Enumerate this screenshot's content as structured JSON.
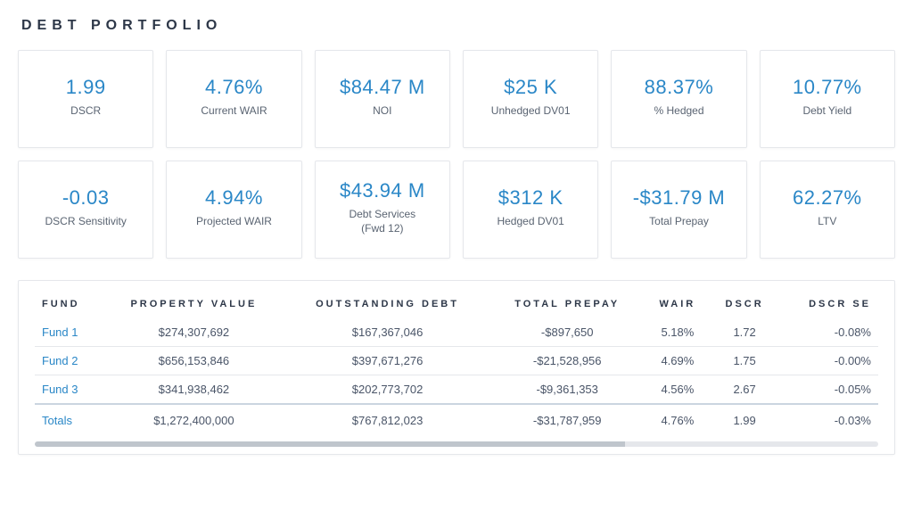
{
  "title": "DEBT PORTFOLIO",
  "colors": {
    "accent": "#2a87c7",
    "text": "#4a5568",
    "card_border": "#e5e7eb",
    "background": "#ffffff"
  },
  "kpis": [
    {
      "value": "1.99",
      "label": "DSCR"
    },
    {
      "value": "4.76%",
      "label": "Current WAIR"
    },
    {
      "value": "$84.47 M",
      "label": "NOI"
    },
    {
      "value": "$25 K",
      "label": "Unhedged DV01"
    },
    {
      "value": "88.37%",
      "label": "% Hedged"
    },
    {
      "value": "10.77%",
      "label": "Debt Yield"
    },
    {
      "value": "-0.03",
      "label": "DSCR Sensitivity"
    },
    {
      "value": "4.94%",
      "label": "Projected WAIR"
    },
    {
      "value": "$43.94 M",
      "label": "Debt Services\n(Fwd 12)"
    },
    {
      "value": "$312 K",
      "label": "Hedged DV01"
    },
    {
      "value": "-$31.79 M",
      "label": "Total Prepay"
    },
    {
      "value": "62.27%",
      "label": "LTV"
    }
  ],
  "table": {
    "columns": [
      "FUND",
      "PROPERTY VALUE",
      "OUTSTANDING DEBT",
      "TOTAL PREPAY",
      "WAIR",
      "DSCR",
      "DSCR SE"
    ],
    "rows": [
      {
        "fund": "Fund 1",
        "property_value": "$274,307,692",
        "outstanding_debt": "$167,367,046",
        "total_prepay": "-$897,650",
        "wair": "5.18%",
        "dscr": "1.72",
        "dscr_se": "-0.08%"
      },
      {
        "fund": "Fund 2",
        "property_value": "$656,153,846",
        "outstanding_debt": "$397,671,276",
        "total_prepay": "-$21,528,956",
        "wair": "4.69%",
        "dscr": "1.75",
        "dscr_se": "-0.00%"
      },
      {
        "fund": "Fund 3",
        "property_value": "$341,938,462",
        "outstanding_debt": "$202,773,702",
        "total_prepay": "-$9,361,353",
        "wair": "4.56%",
        "dscr": "2.67",
        "dscr_se": "-0.05%"
      }
    ],
    "totals": {
      "fund": "Totals",
      "property_value": "$1,272,400,000",
      "outstanding_debt": "$767,812,023",
      "total_prepay": "-$31,787,959",
      "wair": "4.76%",
      "dscr": "1.99",
      "dscr_se": "-0.03%"
    }
  }
}
